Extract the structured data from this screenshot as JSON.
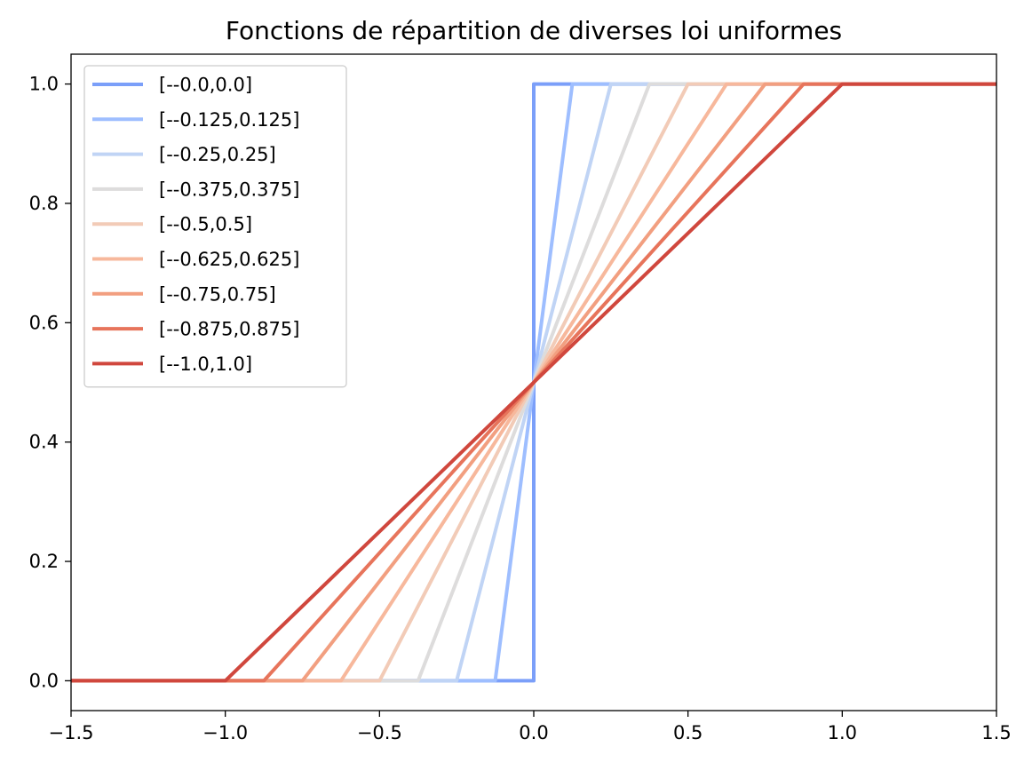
{
  "chart_data": {
    "type": "line",
    "title": "Fonctions de répartition de diverses loi uniformes",
    "xlabel": "",
    "ylabel": "",
    "xlim": [
      -1.5,
      1.5
    ],
    "ylim": [
      -0.05,
      1.05
    ],
    "xticks": [
      -1.5,
      -1.0,
      -0.5,
      0.0,
      0.5,
      1.0,
      1.5
    ],
    "xtick_labels": [
      "−1.5",
      "−1.0",
      "−0.5",
      "0.0",
      "0.5",
      "1.0",
      "1.5"
    ],
    "yticks": [
      0.0,
      0.2,
      0.4,
      0.6,
      0.8,
      1.0
    ],
    "ytick_labels": [
      "0.0",
      "0.2",
      "0.4",
      "0.6",
      "0.8",
      "1.0"
    ],
    "grid": false,
    "legend_position": "upper-left",
    "series": [
      {
        "name": "[--0.0,0.0]",
        "color": "#7b9ff9",
        "x": [
          -1.5,
          0.0,
          0.0,
          1.5
        ],
        "y": [
          0,
          0,
          1,
          1
        ]
      },
      {
        "name": "[--0.125,0.125]",
        "color": "#9ebeff",
        "x": [
          -1.5,
          -0.125,
          0.125,
          1.5
        ],
        "y": [
          0,
          0,
          1,
          1
        ]
      },
      {
        "name": "[--0.25,0.25]",
        "color": "#c0d4f5",
        "x": [
          -1.5,
          -0.25,
          0.25,
          1.5
        ],
        "y": [
          0,
          0,
          1,
          1
        ]
      },
      {
        "name": "[--0.375,0.375]",
        "color": "#dddcdc",
        "x": [
          -1.5,
          -0.375,
          0.375,
          1.5
        ],
        "y": [
          0,
          0,
          1,
          1
        ]
      },
      {
        "name": "[--0.5,0.5]",
        "color": "#f2cbb7",
        "x": [
          -1.5,
          -0.5,
          0.5,
          1.5
        ],
        "y": [
          0,
          0,
          1,
          1
        ]
      },
      {
        "name": "[--0.625,0.625]",
        "color": "#f7b89c",
        "x": [
          -1.5,
          -0.625,
          0.625,
          1.5
        ],
        "y": [
          0,
          0,
          1,
          1
        ]
      },
      {
        "name": "[--0.75,0.75]",
        "color": "#f29f80",
        "x": [
          -1.5,
          -0.75,
          0.75,
          1.5
        ],
        "y": [
          0,
          0,
          1,
          1
        ]
      },
      {
        "name": "[--0.875,0.875]",
        "color": "#e7745b",
        "x": [
          -1.5,
          -0.875,
          0.875,
          1.5
        ],
        "y": [
          0,
          0,
          1,
          1
        ]
      },
      {
        "name": "[--1.0,1.0]",
        "color": "#d0473d",
        "x": [
          -1.5,
          -1.0,
          1.0,
          1.5
        ],
        "y": [
          0,
          0,
          1,
          1
        ]
      }
    ]
  }
}
